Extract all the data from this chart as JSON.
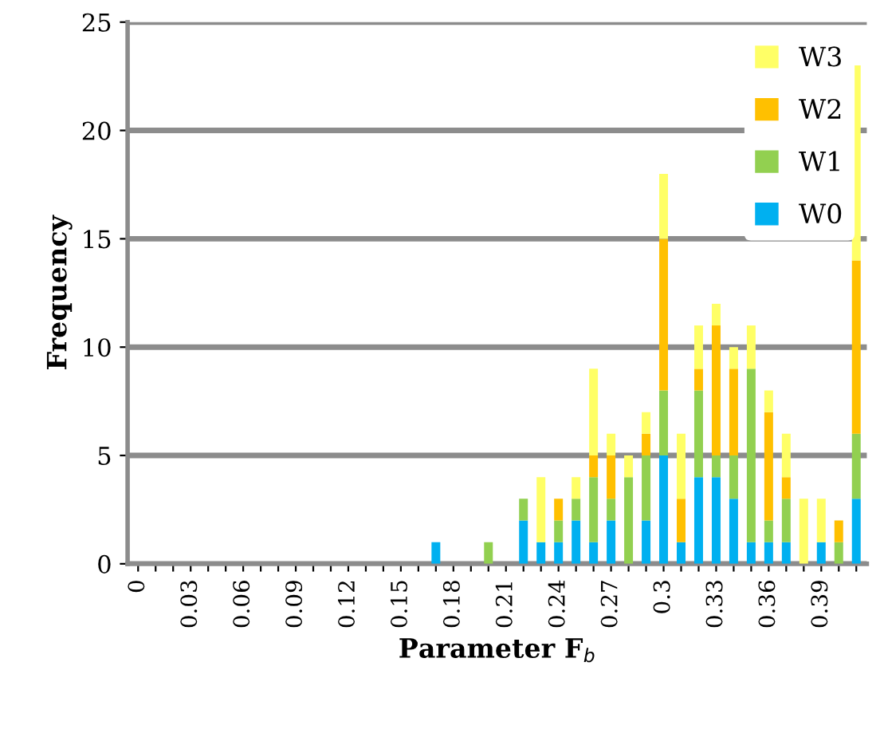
{
  "chart_data": {
    "type": "bar",
    "stacked": true,
    "xlabel": "Parameter F$_{b}$",
    "ylabel": "Frequency",
    "categories": [
      "0",
      null,
      null,
      "0.03",
      null,
      null,
      "0.06",
      null,
      null,
      "0.09",
      null,
      null,
      "0.12",
      null,
      null,
      "0.15",
      null,
      null,
      "0.18",
      null,
      null,
      "0.21",
      null,
      null,
      "0.24",
      null,
      null,
      "0.27",
      null,
      null,
      "0.3",
      null,
      null,
      "0.33",
      null,
      null,
      "0.36",
      null,
      null,
      "0.39",
      null,
      null
    ],
    "series": [
      {
        "name": "W0",
        "color": "#00b0f0",
        "values": [
          0,
          0,
          0,
          0,
          0,
          0,
          0,
          0,
          0,
          0,
          0,
          0,
          0,
          0,
          0,
          0,
          0,
          1,
          0,
          0,
          0,
          0,
          2,
          1,
          1,
          2,
          1,
          2,
          0,
          2,
          5,
          1,
          4,
          4,
          3,
          1,
          1,
          1,
          0,
          1,
          0,
          3
        ]
      },
      {
        "name": "W1",
        "color": "#92d050",
        "values": [
          0,
          0,
          0,
          0,
          0,
          0,
          0,
          0,
          0,
          0,
          0,
          0,
          0,
          0,
          0,
          0,
          0,
          0,
          0,
          0,
          1,
          0,
          1,
          0,
          1,
          1,
          3,
          1,
          4,
          3,
          3,
          0,
          4,
          1,
          2,
          8,
          1,
          2,
          0,
          0,
          1,
          3
        ]
      },
      {
        "name": "W2",
        "color": "#ffc000",
        "values": [
          0,
          0,
          0,
          0,
          0,
          0,
          0,
          0,
          0,
          0,
          0,
          0,
          0,
          0,
          0,
          0,
          0,
          0,
          0,
          0,
          0,
          0,
          0,
          0,
          1,
          0,
          1,
          2,
          0,
          1,
          7,
          2,
          1,
          6,
          4,
          0,
          5,
          1,
          0,
          0,
          1,
          8
        ]
      },
      {
        "name": "W3",
        "color": "#ffff66",
        "values": [
          0,
          0,
          0,
          0,
          0,
          0,
          0,
          0,
          0,
          0,
          0,
          0,
          0,
          0,
          0,
          0,
          0,
          0,
          0,
          0,
          0,
          0,
          0,
          3,
          0,
          1,
          4,
          1,
          1,
          1,
          3,
          3,
          2,
          1,
          1,
          2,
          1,
          2,
          3,
          2,
          0,
          9
        ]
      }
    ],
    "ylim": [
      0,
      25
    ],
    "yticks": [
      0,
      5,
      10,
      15,
      20,
      25
    ],
    "grid": "y",
    "legend": "top right"
  }
}
